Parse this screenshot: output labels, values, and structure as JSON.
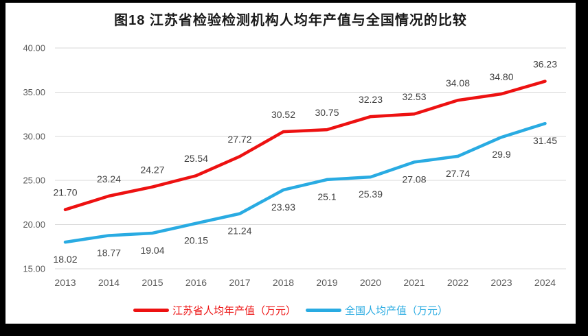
{
  "title": "图18  江苏省检验检测机构人均年产值与全国情况的比较",
  "chart_data": {
    "type": "line",
    "title": "图18  江苏省检验检测机构人均年产值与全国情况的比较",
    "categories": [
      "2013",
      "2014",
      "2015",
      "2016",
      "2017",
      "2018",
      "2019",
      "2020",
      "2021",
      "2022",
      "2023",
      "2024"
    ],
    "series": [
      {
        "name": "江苏省人均年产值（万元）",
        "color": "#ed1111",
        "values": [
          21.7,
          23.24,
          24.27,
          25.54,
          27.72,
          30.52,
          30.75,
          32.23,
          32.53,
          34.08,
          34.8,
          36.23
        ],
        "point_labels": [
          "21.70",
          "23.24",
          "24.27",
          "25.54",
          "27.72",
          "30.52",
          "30.75",
          "32.23",
          "32.53",
          "34.08",
          "34.80",
          "36.23"
        ],
        "label_position": "above"
      },
      {
        "name": "全国人均产值（万元）",
        "color": "#29abe2",
        "values": [
          18.02,
          18.77,
          19.04,
          20.15,
          21.24,
          23.93,
          25.1,
          25.39,
          27.08,
          27.74,
          29.9,
          31.45
        ],
        "point_labels": [
          "18.02",
          "18.77",
          "19.04",
          "20.15",
          "21.24",
          "23.93",
          "25.1",
          "25.39",
          "27.08",
          "27.74",
          "29.9",
          "31.45"
        ],
        "label_position": "below"
      }
    ],
    "ylim": [
      15,
      40
    ],
    "yticks": [
      15,
      20,
      25,
      30,
      35,
      40
    ],
    "ytick_labels": [
      "15.00",
      "20.00",
      "25.00",
      "30.00",
      "35.00",
      "40.00"
    ],
    "grid": true,
    "legend_position": "bottom",
    "colors": {
      "grid": "#d9d9d9",
      "axis_text": "#595959",
      "point_label_text": "#3f3f3f",
      "title_text": "#1a1a1a",
      "frame_background": "#000000",
      "page_background": "#ffffff"
    }
  }
}
